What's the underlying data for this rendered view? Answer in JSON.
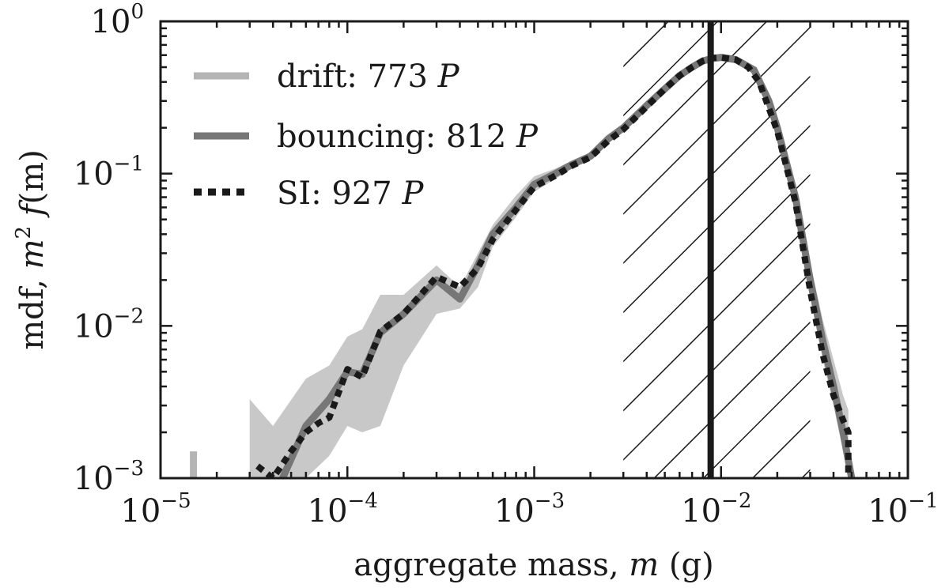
{
  "chart_data": {
    "type": "line",
    "x_scale": "log",
    "y_scale": "log",
    "xlim": [
      1e-05,
      0.1
    ],
    "ylim": [
      0.001,
      1
    ],
    "x_ticks": [
      {
        "value": 1e-05,
        "base": "10",
        "exp": "−5"
      },
      {
        "value": 0.0001,
        "base": "10",
        "exp": "−4"
      },
      {
        "value": 0.001,
        "base": "10",
        "exp": "−3"
      },
      {
        "value": 0.01,
        "base": "10",
        "exp": "−2"
      },
      {
        "value": 0.1,
        "base": "10",
        "exp": "−1"
      }
    ],
    "y_ticks": [
      {
        "value": 0.001,
        "base": "10",
        "exp": "−3"
      },
      {
        "value": 0.01,
        "base": "10",
        "exp": "−2"
      },
      {
        "value": 0.1,
        "base": "10",
        "exp": "−1"
      },
      {
        "value": 1,
        "base": "10",
        "exp": "0"
      }
    ],
    "xlabel": {
      "prefix": "aggregate mass, ",
      "var": "m",
      "suffix": " (g)"
    },
    "ylabel": {
      "prefix": "mdf, ",
      "var1": "m",
      "sup": "2",
      "var2": " f",
      "suffix": "(m)"
    },
    "legend_placement": "top-left",
    "series": [
      {
        "name_text": "drift:  773 ",
        "name_var": "P",
        "color": "#b4b4b4",
        "style": "solid",
        "x": [
          1.5e-05,
          1.5e-05
        ],
        "y": [
          0.001,
          0.0015
        ],
        "band_x": [],
        "band_low": [],
        "band_high": []
      },
      {
        "name_text": "bouncing:  812 ",
        "name_var": "P",
        "color": "#777777",
        "style": "solid",
        "x": [
          4.5e-05,
          6e-05,
          8e-05,
          0.0001,
          0.00012,
          0.00015,
          0.0002,
          0.0003,
          0.0004,
          0.0005,
          0.0006,
          0.0008,
          0.001,
          0.0013,
          0.0016,
          0.002,
          0.0025,
          0.003,
          0.004,
          0.005,
          0.006,
          0.007,
          0.008,
          0.009,
          0.01,
          0.012,
          0.015,
          0.018,
          0.02,
          0.025,
          0.03,
          0.035,
          0.04,
          0.045,
          0.05
        ],
        "y": [
          0.001,
          0.0022,
          0.0033,
          0.005,
          0.0048,
          0.009,
          0.012,
          0.02,
          0.015,
          0.025,
          0.04,
          0.06,
          0.085,
          0.1,
          0.115,
          0.13,
          0.17,
          0.2,
          0.28,
          0.36,
          0.44,
          0.5,
          0.55,
          0.57,
          0.58,
          0.56,
          0.48,
          0.3,
          0.2,
          0.07,
          0.02,
          0.008,
          0.004,
          0.002,
          0.001
        ],
        "band_x": [
          3e-05,
          4e-05,
          6e-05,
          8e-05,
          0.0001,
          0.00012,
          0.00015,
          0.0002,
          0.0003,
          0.0004,
          0.0005,
          0.0006,
          0.0008,
          0.001,
          0.0013,
          0.0016,
          0.002,
          0.0025,
          0.003,
          0.004,
          0.005,
          0.006,
          0.007,
          0.008,
          0.009,
          0.01,
          0.012,
          0.015,
          0.018,
          0.02,
          0.025,
          0.03,
          0.035,
          0.04,
          0.045,
          0.048
        ],
        "band_low": [
          0.001,
          0.001,
          0.001,
          0.0014,
          0.0022,
          0.002,
          0.0022,
          0.0055,
          0.012,
          0.013,
          0.018,
          0.033,
          0.052,
          0.076,
          0.092,
          0.11,
          0.125,
          0.16,
          0.19,
          0.27,
          0.35,
          0.43,
          0.49,
          0.54,
          0.56,
          0.57,
          0.54,
          0.46,
          0.28,
          0.18,
          0.06,
          0.016,
          0.006,
          0.003,
          0.0015,
          0.001
        ],
        "band_high": [
          0.0033,
          0.0022,
          0.0045,
          0.0055,
          0.0085,
          0.0095,
          0.016,
          0.016,
          0.025,
          0.018,
          0.03,
          0.046,
          0.072,
          0.096,
          0.108,
          0.122,
          0.138,
          0.18,
          0.21,
          0.29,
          0.38,
          0.46,
          0.52,
          0.57,
          0.59,
          0.6,
          0.58,
          0.5,
          0.33,
          0.22,
          0.08,
          0.026,
          0.011,
          0.006,
          0.0035,
          0.0028
        ]
      },
      {
        "name_text": "SI:  927 ",
        "name_var": "P",
        "color": "#1a1a1a",
        "style": "dotted",
        "x": [
          3.3e-05,
          4e-05,
          5e-05,
          6e-05,
          7e-05,
          8e-05,
          0.0001,
          0.00012,
          0.00015,
          0.0002,
          0.0003,
          0.0004,
          0.0005,
          0.0006,
          0.0008,
          0.001,
          0.0013,
          0.0016,
          0.002,
          0.0025,
          0.003,
          0.004,
          0.005,
          0.006,
          0.007,
          0.008,
          0.009,
          0.01,
          0.012,
          0.014,
          0.016,
          0.018,
          0.02,
          0.025,
          0.03,
          0.035,
          0.04,
          0.045,
          0.048,
          0.048
        ],
        "y": [
          0.0012,
          0.001,
          0.0015,
          0.002,
          0.0023,
          0.0025,
          0.0052,
          0.0046,
          0.0092,
          0.012,
          0.021,
          0.018,
          0.024,
          0.037,
          0.058,
          0.082,
          0.097,
          0.113,
          0.128,
          0.165,
          0.195,
          0.275,
          0.36,
          0.44,
          0.5,
          0.55,
          0.575,
          0.58,
          0.56,
          0.5,
          0.4,
          0.27,
          0.19,
          0.065,
          0.017,
          0.0065,
          0.0035,
          0.0024,
          0.002,
          0.001
        ]
      }
    ],
    "shaded_region": {
      "x_min": 0.003,
      "x_max": 0.03,
      "style": "hatched"
    },
    "vertical_line": {
      "x": 0.0088,
      "color": "#1a1a1a"
    }
  }
}
